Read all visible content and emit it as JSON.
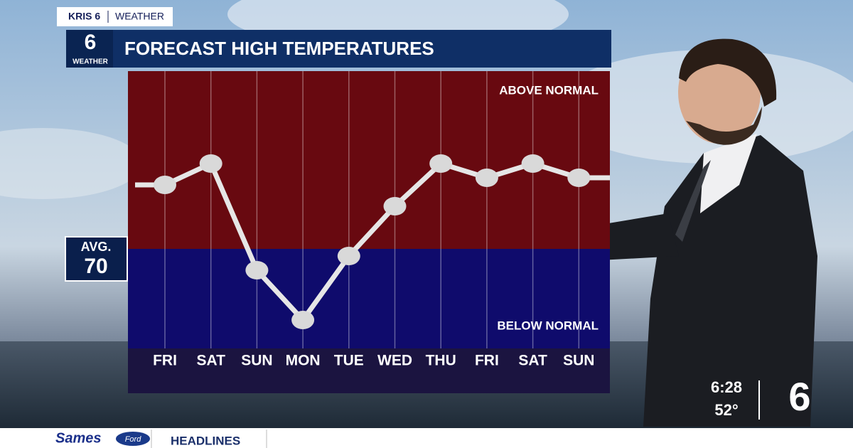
{
  "chart_data": {
    "type": "line",
    "title": "FORECAST HIGH TEMPERATURES",
    "categories": [
      "FRI",
      "SAT",
      "SUN",
      "MON",
      "TUE",
      "WED",
      "THU",
      "FRI",
      "SAT",
      "SUN"
    ],
    "values": [
      79,
      82,
      67,
      60,
      69,
      76,
      82,
      80,
      82,
      80
    ],
    "color": "#e6e6e6",
    "ylim": [
      56,
      95
    ],
    "avg": {
      "label": "AVG.",
      "value": 70
    },
    "above_label": "ABOVE NORMAL",
    "below_label": "BELOW NORMAL",
    "above_color": "#680910",
    "below_color": "#0f0b6c"
  },
  "header": {
    "station": "KRIS 6",
    "section": "WEATHER",
    "logo": "6",
    "logo_caption": "WEATHER"
  },
  "bug": {
    "time": "6:28",
    "temperature": "52°",
    "logo": "6"
  },
  "ticker": {
    "sponsor": "Sames",
    "sponsor_brand": "Ford",
    "headline": "HEADLINES"
  }
}
